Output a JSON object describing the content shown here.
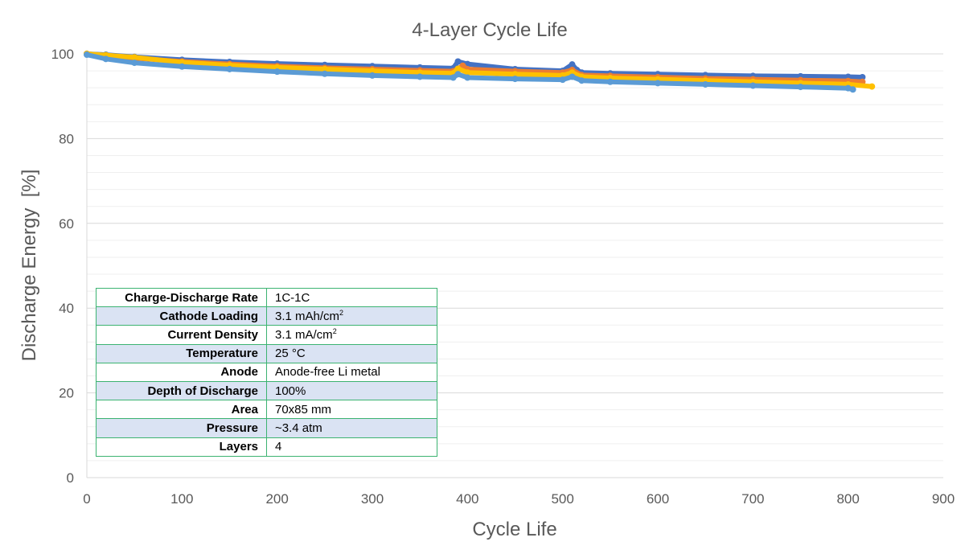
{
  "chart_data": {
    "type": "scatter",
    "title": "4-Layer Cycle Life",
    "xlabel": "Cycle Life",
    "ylabel": "Discharge Energy  [%]",
    "xlim": [
      0,
      900
    ],
    "ylim": [
      0,
      100
    ],
    "x_ticks": [
      "0",
      "100",
      "200",
      "300",
      "400",
      "500",
      "600",
      "700",
      "800",
      "900"
    ],
    "y_ticks": [
      "0",
      "20",
      "40",
      "60",
      "80",
      "100"
    ],
    "grid": "horizontal major and minor",
    "series": [
      {
        "color": "#4472c4",
        "x": [
          0,
          20,
          50,
          100,
          150,
          200,
          250,
          300,
          350,
          385,
          390,
          400,
          450,
          500,
          510,
          515,
          520,
          550,
          600,
          650,
          700,
          750,
          800,
          815
        ],
        "y": [
          100,
          99.8,
          99.3,
          98.6,
          98.1,
          97.7,
          97.4,
          97.1,
          96.8,
          96.6,
          98.2,
          97.6,
          96.4,
          96.0,
          97.5,
          96.2,
          95.6,
          95.4,
          95.2,
          95.0,
          94.8,
          94.7,
          94.6,
          94.5
        ]
      },
      {
        "color": "#ed7d31",
        "x": [
          0,
          20,
          50,
          100,
          150,
          200,
          250,
          300,
          350,
          385,
          395,
          400,
          450,
          500,
          510,
          520,
          550,
          600,
          650,
          700,
          750,
          800,
          815
        ],
        "y": [
          100,
          99.6,
          99.0,
          98.2,
          97.6,
          97.1,
          96.7,
          96.4,
          96.1,
          95.9,
          97.2,
          96.4,
          95.9,
          95.6,
          96.2,
          95.0,
          94.8,
          94.5,
          94.2,
          94.0,
          93.8,
          93.6,
          93.4
        ]
      },
      {
        "color": "#ffc000",
        "x": [
          0,
          20,
          50,
          100,
          150,
          200,
          250,
          300,
          350,
          385,
          390,
          400,
          450,
          500,
          510,
          520,
          550,
          600,
          650,
          700,
          750,
          800,
          825
        ],
        "y": [
          100,
          99.7,
          99.2,
          98.0,
          97.3,
          96.8,
          96.4,
          96.0,
          95.6,
          95.4,
          96.5,
          95.6,
          95.2,
          94.9,
          95.6,
          94.6,
          94.3,
          94.0,
          93.7,
          93.4,
          93.1,
          92.8,
          92.3
        ]
      },
      {
        "color": "#5b9bd5",
        "x": [
          0,
          20,
          50,
          100,
          150,
          200,
          250,
          300,
          350,
          385,
          390,
          400,
          450,
          500,
          510,
          520,
          550,
          600,
          650,
          700,
          750,
          800,
          805
        ],
        "y": [
          99.8,
          98.8,
          97.9,
          97.0,
          96.4,
          95.8,
          95.3,
          94.9,
          94.6,
          94.4,
          95.2,
          94.4,
          94.1,
          93.9,
          94.6,
          93.7,
          93.4,
          93.1,
          92.8,
          92.5,
          92.2,
          91.9,
          91.6
        ]
      }
    ]
  },
  "table": {
    "rows": [
      {
        "label": "Charge-Discharge Rate",
        "value": "1C-1C"
      },
      {
        "label": "Cathode Loading",
        "value": "3.1 mAh/cm",
        "sup": "2"
      },
      {
        "label": "Current Density",
        "value": "3.1 mA/cm",
        "sup": "2"
      },
      {
        "label": "Temperature",
        "value": "25 °C"
      },
      {
        "label": "Anode",
        "value": "Anode-free Li metal"
      },
      {
        "label": "Depth of Discharge",
        "value": "100%"
      },
      {
        "label": "Area",
        "value": "70x85 mm"
      },
      {
        "label": "Pressure",
        "value": "~3.4 atm"
      },
      {
        "label": "Layers",
        "value": "4"
      }
    ]
  }
}
